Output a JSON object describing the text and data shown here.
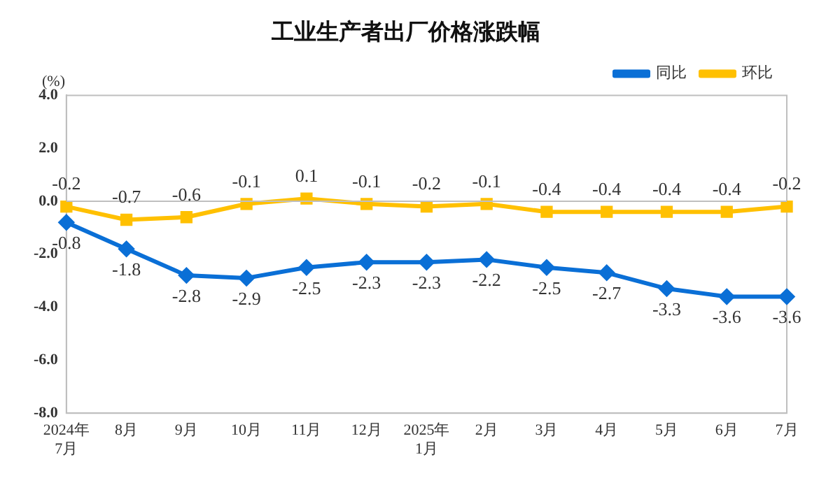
{
  "chart_data": {
    "type": "line",
    "title": "工业生产者出厂价格涨跌幅",
    "ylabel": "(%)",
    "categories": [
      "2024年\n7月",
      "8月",
      "9月",
      "10月",
      "11月",
      "12月",
      "2025年\n1月",
      "2月",
      "3月",
      "4月",
      "5月",
      "6月",
      "7月"
    ],
    "series": [
      {
        "name": "同比",
        "color": "#0a6fd6",
        "marker": "diamond",
        "values": [
          -0.8,
          -1.8,
          -2.8,
          -2.9,
          -2.5,
          -2.3,
          -2.3,
          -2.2,
          -2.5,
          -2.7,
          -3.3,
          -3.6,
          -3.6
        ]
      },
      {
        "name": "环比",
        "color": "#ffc000",
        "marker": "square",
        "values": [
          -0.2,
          -0.7,
          -0.6,
          -0.1,
          0.1,
          -0.1,
          -0.2,
          -0.1,
          -0.4,
          -0.4,
          -0.4,
          -0.4,
          -0.2
        ]
      }
    ],
    "ylim": [
      -8,
      4
    ],
    "yticks": [
      {
        "value": -8,
        "label": "-8.0"
      },
      {
        "value": -6,
        "label": "-6.0"
      },
      {
        "value": -4,
        "label": "-4.0"
      },
      {
        "value": -2,
        "label": "-2.0"
      },
      {
        "value": 0,
        "label": "0.0"
      },
      {
        "value": 2,
        "label": "2.0"
      },
      {
        "value": 4,
        "label": "4.0"
      }
    ],
    "ref_lines": [
      {
        "axis": "y",
        "value": 0,
        "color": "#bfbfbf"
      }
    ],
    "grid": false,
    "legend": "top right",
    "data_labels": true,
    "line_style": "solid"
  }
}
